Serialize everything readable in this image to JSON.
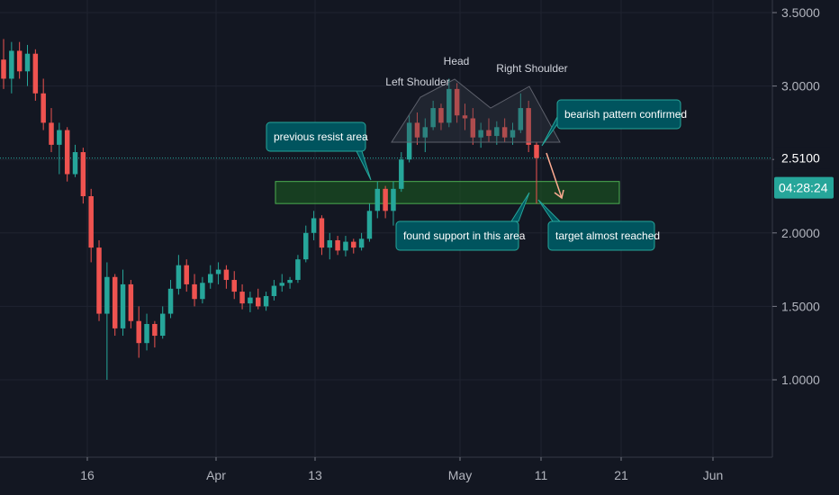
{
  "chart_data": {
    "type": "candlestick",
    "y_axis": {
      "ticks": [
        "3.5000",
        "3.0000",
        "2.5000",
        "2.0000",
        "1.5000",
        "1.0000"
      ],
      "tick_values": [
        3.5,
        3.0,
        2.5,
        2.0,
        1.5,
        1.0
      ],
      "range": [
        0.45,
        3.58
      ]
    },
    "x_axis": {
      "ticks": [
        "16",
        "Apr",
        "13",
        "May",
        "11",
        "21",
        "Jun"
      ]
    },
    "current_price": {
      "value": 2.51,
      "label": "2.5100",
      "countdown": "04:28:24",
      "color": "#26a69a"
    },
    "colors": {
      "up": "#26a69a",
      "down": "#ef5350",
      "zone": "#1b5e20",
      "callout": "#00545e"
    },
    "support_zone": {
      "y_low": 2.2,
      "y_high": 2.35
    },
    "series": [
      {
        "o": 3.18,
        "h": 3.32,
        "l": 2.98,
        "c": 3.05
      },
      {
        "o": 3.05,
        "h": 3.3,
        "l": 2.95,
        "c": 3.24
      },
      {
        "o": 3.24,
        "h": 3.3,
        "l": 3.05,
        "c": 3.1
      },
      {
        "o": 3.1,
        "h": 3.28,
        "l": 3.0,
        "c": 3.22
      },
      {
        "o": 3.22,
        "h": 3.25,
        "l": 2.9,
        "c": 2.95
      },
      {
        "o": 2.95,
        "h": 3.05,
        "l": 2.7,
        "c": 2.75
      },
      {
        "o": 2.75,
        "h": 2.85,
        "l": 2.55,
        "c": 2.6
      },
      {
        "o": 2.6,
        "h": 2.75,
        "l": 2.4,
        "c": 2.7
      },
      {
        "o": 2.7,
        "h": 2.72,
        "l": 2.35,
        "c": 2.4
      },
      {
        "o": 2.4,
        "h": 2.6,
        "l": 2.38,
        "c": 2.55
      },
      {
        "o": 2.55,
        "h": 2.58,
        "l": 2.2,
        "c": 2.25
      },
      {
        "o": 2.25,
        "h": 2.3,
        "l": 1.8,
        "c": 1.9
      },
      {
        "o": 1.9,
        "h": 1.95,
        "l": 1.4,
        "c": 1.45
      },
      {
        "o": 1.45,
        "h": 1.8,
        "l": 1.0,
        "c": 1.7
      },
      {
        "o": 1.7,
        "h": 1.72,
        "l": 1.3,
        "c": 1.35
      },
      {
        "o": 1.35,
        "h": 1.75,
        "l": 1.3,
        "c": 1.65
      },
      {
        "o": 1.65,
        "h": 1.68,
        "l": 1.35,
        "c": 1.4
      },
      {
        "o": 1.4,
        "h": 1.5,
        "l": 1.15,
        "c": 1.25
      },
      {
        "o": 1.25,
        "h": 1.45,
        "l": 1.2,
        "c": 1.38
      },
      {
        "o": 1.38,
        "h": 1.4,
        "l": 1.22,
        "c": 1.3
      },
      {
        "o": 1.3,
        "h": 1.5,
        "l": 1.28,
        "c": 1.45
      },
      {
        "o": 1.45,
        "h": 1.68,
        "l": 1.42,
        "c": 1.62
      },
      {
        "o": 1.62,
        "h": 1.85,
        "l": 1.58,
        "c": 1.78
      },
      {
        "o": 1.78,
        "h": 1.82,
        "l": 1.6,
        "c": 1.65
      },
      {
        "o": 1.65,
        "h": 1.72,
        "l": 1.5,
        "c": 1.55
      },
      {
        "o": 1.55,
        "h": 1.7,
        "l": 1.52,
        "c": 1.66
      },
      {
        "o": 1.66,
        "h": 1.78,
        "l": 1.62,
        "c": 1.72
      },
      {
        "o": 1.72,
        "h": 1.8,
        "l": 1.65,
        "c": 1.75
      },
      {
        "o": 1.75,
        "h": 1.78,
        "l": 1.62,
        "c": 1.68
      },
      {
        "o": 1.68,
        "h": 1.74,
        "l": 1.55,
        "c": 1.6
      },
      {
        "o": 1.6,
        "h": 1.65,
        "l": 1.48,
        "c": 1.52
      },
      {
        "o": 1.52,
        "h": 1.6,
        "l": 1.46,
        "c": 1.56
      },
      {
        "o": 1.56,
        "h": 1.62,
        "l": 1.48,
        "c": 1.5
      },
      {
        "o": 1.5,
        "h": 1.6,
        "l": 1.47,
        "c": 1.57
      },
      {
        "o": 1.57,
        "h": 1.68,
        "l": 1.54,
        "c": 1.64
      },
      {
        "o": 1.64,
        "h": 1.72,
        "l": 1.6,
        "c": 1.66
      },
      {
        "o": 1.66,
        "h": 1.7,
        "l": 1.62,
        "c": 1.68
      },
      {
        "o": 1.68,
        "h": 1.85,
        "l": 1.66,
        "c": 1.82
      },
      {
        "o": 1.82,
        "h": 2.05,
        "l": 1.8,
        "c": 2.0
      },
      {
        "o": 2.0,
        "h": 2.15,
        "l": 1.95,
        "c": 2.1
      },
      {
        "o": 2.1,
        "h": 2.12,
        "l": 1.85,
        "c": 1.9
      },
      {
        "o": 1.9,
        "h": 2.0,
        "l": 1.82,
        "c": 1.95
      },
      {
        "o": 1.95,
        "h": 1.98,
        "l": 1.85,
        "c": 1.88
      },
      {
        "o": 1.88,
        "h": 1.98,
        "l": 1.84,
        "c": 1.94
      },
      {
        "o": 1.94,
        "h": 1.96,
        "l": 1.86,
        "c": 1.9
      },
      {
        "o": 1.9,
        "h": 2.0,
        "l": 1.88,
        "c": 1.96
      },
      {
        "o": 1.96,
        "h": 2.2,
        "l": 1.94,
        "c": 2.15
      },
      {
        "o": 2.15,
        "h": 2.35,
        "l": 2.1,
        "c": 2.3
      },
      {
        "o": 2.3,
        "h": 2.32,
        "l": 2.1,
        "c": 2.15
      },
      {
        "o": 2.15,
        "h": 2.35,
        "l": 2.05,
        "c": 2.3
      },
      {
        "o": 2.3,
        "h": 2.55,
        "l": 2.28,
        "c": 2.5
      },
      {
        "o": 2.5,
        "h": 2.8,
        "l": 2.48,
        "c": 2.75
      },
      {
        "o": 2.75,
        "h": 2.82,
        "l": 2.6,
        "c": 2.65
      },
      {
        "o": 2.65,
        "h": 2.78,
        "l": 2.55,
        "c": 2.72
      },
      {
        "o": 2.72,
        "h": 2.9,
        "l": 2.7,
        "c": 2.85
      },
      {
        "o": 2.85,
        "h": 2.88,
        "l": 2.7,
        "c": 2.75
      },
      {
        "o": 2.75,
        "h": 3.05,
        "l": 2.72,
        "c": 2.98
      },
      {
        "o": 2.98,
        "h": 3.02,
        "l": 2.75,
        "c": 2.8
      },
      {
        "o": 2.8,
        "h": 2.88,
        "l": 2.7,
        "c": 2.78
      },
      {
        "o": 2.78,
        "h": 2.85,
        "l": 2.6,
        "c": 2.65
      },
      {
        "o": 2.65,
        "h": 2.75,
        "l": 2.58,
        "c": 2.7
      },
      {
        "o": 2.7,
        "h": 2.78,
        "l": 2.62,
        "c": 2.66
      },
      {
        "o": 2.66,
        "h": 2.76,
        "l": 2.6,
        "c": 2.72
      },
      {
        "o": 2.72,
        "h": 2.78,
        "l": 2.62,
        "c": 2.65
      },
      {
        "o": 2.65,
        "h": 2.75,
        "l": 2.6,
        "c": 2.7
      },
      {
        "o": 2.7,
        "h": 2.95,
        "l": 2.68,
        "c": 2.85
      },
      {
        "o": 2.85,
        "h": 2.9,
        "l": 2.55,
        "c": 2.6
      },
      {
        "o": 2.6,
        "h": 2.62,
        "l": 2.2,
        "c": 2.51
      }
    ],
    "annotations": [
      {
        "text": "Left Shoulder",
        "style": "plain"
      },
      {
        "text": "Head",
        "style": "plain"
      },
      {
        "text": "Right Shoulder",
        "style": "plain"
      },
      {
        "text": "previous resist area",
        "style": "callout"
      },
      {
        "text": "bearish pattern confirmed",
        "style": "callout"
      },
      {
        "text": "found support in this area",
        "style": "callout"
      },
      {
        "text": "target almost reached",
        "style": "callout"
      }
    ]
  }
}
